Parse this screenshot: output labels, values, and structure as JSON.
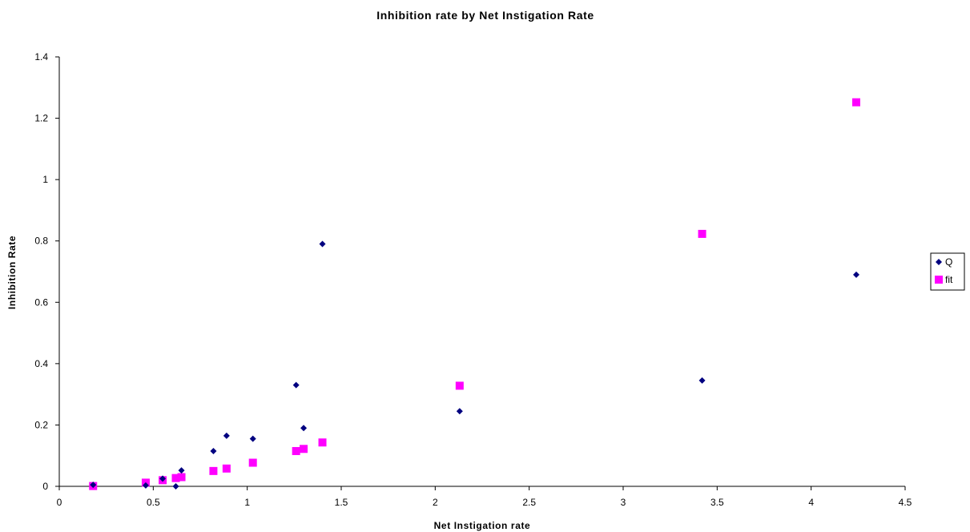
{
  "chart_data": {
    "type": "scatter",
    "title": "Inhibition rate by Net Instigation Rate",
    "xlabel": "Net Instigation rate",
    "ylabel": "Inhibition Rate",
    "xlim": [
      0,
      4.5
    ],
    "ylim": [
      0,
      1.4
    ],
    "x_ticks": [
      "0",
      "0.5",
      "1",
      "1.5",
      "2",
      "2.5",
      "3",
      "3.5",
      "4",
      "4.5"
    ],
    "y_ticks": [
      "0",
      "0.2",
      "0.4",
      "0.6",
      "0.8",
      "1",
      "1.2",
      "1.4"
    ],
    "grid": false,
    "legend_position": "right",
    "series": [
      {
        "name": "Q",
        "marker": "diamond",
        "color": "#000080",
        "points": [
          {
            "x": 0.18,
            "y": 0.005
          },
          {
            "x": 0.46,
            "y": 0.003
          },
          {
            "x": 0.55,
            "y": 0.025
          },
          {
            "x": 0.62,
            "y": 0.0
          },
          {
            "x": 0.65,
            "y": 0.052
          },
          {
            "x": 0.82,
            "y": 0.115
          },
          {
            "x": 0.89,
            "y": 0.165
          },
          {
            "x": 1.03,
            "y": 0.155
          },
          {
            "x": 1.26,
            "y": 0.33
          },
          {
            "x": 1.3,
            "y": 0.19
          },
          {
            "x": 1.4,
            "y": 0.79
          },
          {
            "x": 2.13,
            "y": 0.245
          },
          {
            "x": 3.42,
            "y": 0.345
          },
          {
            "x": 4.24,
            "y": 0.69
          }
        ]
      },
      {
        "name": "fit",
        "marker": "square",
        "color": "#FF00FF",
        "points": [
          {
            "x": 0.18,
            "y": 0.001
          },
          {
            "x": 0.46,
            "y": 0.012
          },
          {
            "x": 0.55,
            "y": 0.02
          },
          {
            "x": 0.62,
            "y": 0.027
          },
          {
            "x": 0.65,
            "y": 0.03
          },
          {
            "x": 0.82,
            "y": 0.05
          },
          {
            "x": 0.89,
            "y": 0.058
          },
          {
            "x": 1.03,
            "y": 0.077
          },
          {
            "x": 1.26,
            "y": 0.115
          },
          {
            "x": 1.3,
            "y": 0.122
          },
          {
            "x": 1.4,
            "y": 0.143
          },
          {
            "x": 2.13,
            "y": 0.328
          },
          {
            "x": 3.42,
            "y": 0.823
          },
          {
            "x": 4.24,
            "y": 1.252
          }
        ]
      }
    ]
  }
}
